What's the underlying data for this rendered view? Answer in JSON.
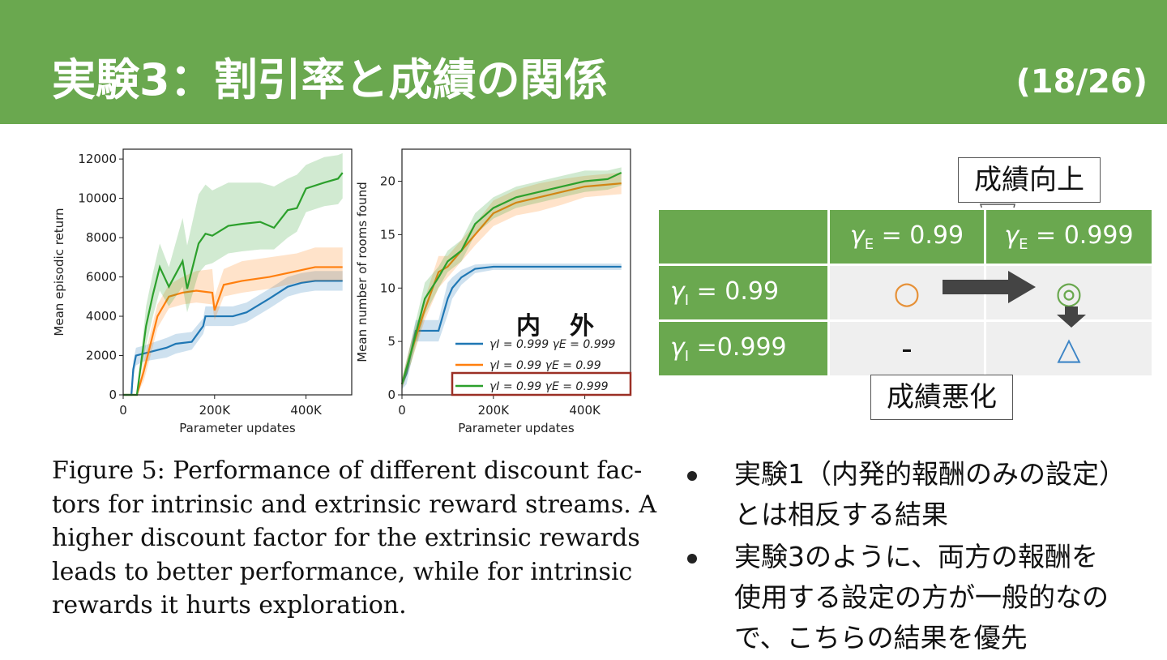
{
  "slide": {
    "title": "実験3：割引率と成績の関係",
    "page": "(18/26)"
  },
  "chart_data": [
    {
      "type": "line",
      "xlabel": "Parameter updates",
      "ylabel": "Mean episodic return",
      "xlim": [
        0,
        500000
      ],
      "ylim": [
        0,
        12500
      ],
      "xticks": [
        0,
        200000,
        400000
      ],
      "xtick_labels": [
        "0",
        "200K",
        "400K"
      ],
      "yticks": [
        0,
        2000,
        4000,
        6000,
        8000,
        10000,
        12000
      ],
      "ytick_labels": [
        "0",
        "2000",
        "4000",
        "6000",
        "8000",
        "10000",
        "12000"
      ],
      "series": [
        {
          "color": "#1f77b4",
          "x": [
            0,
            18000,
            22000,
            28000,
            45000,
            95000,
            115000,
            150000,
            175000,
            180000,
            240000,
            270000,
            320000,
            360000,
            390000,
            420000,
            480000
          ],
          "y": [
            0,
            0,
            1300,
            2000,
            2100,
            2400,
            2600,
            2700,
            3500,
            4000,
            4000,
            4200,
            4900,
            5500,
            5700,
            5800,
            5800
          ],
          "lo": [
            0,
            0,
            900,
            1500,
            1700,
            1900,
            2100,
            2300,
            3100,
            3500,
            3500,
            3700,
            4400,
            5000,
            5200,
            5300,
            5300
          ],
          "hi": [
            0,
            0,
            1700,
            2400,
            2500,
            2900,
            3100,
            3200,
            3900,
            4500,
            4500,
            4700,
            5400,
            6000,
            6200,
            6300,
            6300
          ]
        },
        {
          "color": "#ff7f0e",
          "x": [
            0,
            30000,
            45000,
            60000,
            75000,
            100000,
            130000,
            160000,
            195000,
            200000,
            220000,
            260000,
            320000,
            380000,
            420000,
            480000
          ],
          "y": [
            0,
            0,
            1200,
            2600,
            4000,
            5000,
            5200,
            5300,
            5200,
            4300,
            5600,
            5800,
            6000,
            6300,
            6500,
            6500
          ],
          "lo": [
            0,
            0,
            700,
            2000,
            3400,
            4400,
            4600,
            4700,
            4600,
            3800,
            5000,
            5200,
            5400,
            5700,
            5800,
            5800
          ],
          "hi": [
            0,
            0,
            1700,
            3200,
            4600,
            5600,
            6000,
            6300,
            6400,
            5000,
            6400,
            6800,
            7000,
            7200,
            7500,
            7500
          ]
        },
        {
          "color": "#2ca02c",
          "x": [
            0,
            30000,
            50000,
            65000,
            80000,
            100000,
            130000,
            140000,
            165000,
            180000,
            195000,
            230000,
            260000,
            300000,
            330000,
            360000,
            380000,
            400000,
            440000,
            470000,
            480000
          ],
          "y": [
            0,
            0,
            3500,
            5100,
            6500,
            5500,
            6800,
            5400,
            7700,
            8200,
            8100,
            8600,
            8700,
            8800,
            8500,
            9400,
            9500,
            10500,
            10800,
            11000,
            11300
          ],
          "lo": [
            0,
            0,
            2500,
            4000,
            5300,
            4500,
            5500,
            4200,
            6200,
            6600,
            6700,
            7200,
            7300,
            7400,
            7400,
            8000,
            8300,
            9300,
            9600,
            9700,
            10000
          ],
          "hi": [
            0,
            0,
            4500,
            6200,
            7700,
            6500,
            9000,
            7600,
            10200,
            10700,
            10400,
            10800,
            10800,
            10800,
            10600,
            11000,
            11200,
            11700,
            12100,
            12200,
            12300
          ]
        }
      ]
    },
    {
      "type": "line",
      "xlabel": "Parameter updates",
      "ylabel": "Mean number of rooms found",
      "xlim": [
        0,
        500000
      ],
      "ylim": [
        0,
        23
      ],
      "xticks": [
        0,
        200000,
        400000
      ],
      "xtick_labels": [
        "0",
        "200K",
        "400K"
      ],
      "yticks": [
        0,
        5,
        10,
        15,
        20
      ],
      "ytick_labels": [
        "0",
        "5",
        "10",
        "15",
        "20"
      ],
      "legend": {
        "placement": "lower-right",
        "header": [
          "内",
          "外"
        ]
      },
      "series": [
        {
          "name": "γI = 0.999 γE = 0.999",
          "color": "#1f77b4",
          "x": [
            0,
            10000,
            20000,
            30000,
            80000,
            100000,
            110000,
            130000,
            160000,
            200000,
            300000,
            480000
          ],
          "y": [
            1,
            2,
            4,
            6,
            6,
            9,
            10,
            11,
            11.8,
            12,
            12,
            12
          ],
          "lo": [
            0.5,
            1,
            3,
            5,
            5,
            7.5,
            9,
            10.3,
            11.4,
            11.7,
            11.7,
            11.7
          ],
          "hi": [
            1.5,
            3,
            5,
            7,
            7,
            10.5,
            11,
            11.7,
            12.2,
            12.3,
            12.3,
            12.3
          ]
        },
        {
          "name": "γI = 0.99 γE = 0.99",
          "color": "#ff7f0e",
          "x": [
            0,
            20000,
            50000,
            80000,
            100000,
            130000,
            160000,
            200000,
            250000,
            300000,
            350000,
            400000,
            480000
          ],
          "y": [
            1,
            4,
            8,
            11.5,
            12,
            13.5,
            15,
            17,
            18,
            18.5,
            19,
            19.5,
            19.8
          ],
          "lo": [
            0.5,
            3,
            7,
            10,
            11,
            12.5,
            14,
            15.8,
            16.8,
            17.2,
            17.8,
            18.5,
            18.8
          ],
          "hi": [
            1.5,
            5,
            9,
            13,
            13,
            14.5,
            16,
            18.2,
            19.2,
            19.8,
            20.2,
            20.5,
            20.8
          ]
        },
        {
          "name": "γI = 0.99 γE = 0.999",
          "color": "#2ca02c",
          "x": [
            0,
            20000,
            50000,
            80000,
            100000,
            130000,
            160000,
            200000,
            250000,
            300000,
            350000,
            400000,
            450000,
            480000
          ],
          "y": [
            1,
            4,
            9,
            11,
            12.5,
            13.5,
            16,
            17.5,
            18.5,
            19,
            19.5,
            20,
            20.2,
            20.8
          ],
          "lo": [
            0.5,
            3,
            7.5,
            10,
            11.5,
            12.5,
            15,
            16.5,
            17.5,
            18,
            18.5,
            19,
            19.2,
            19.6
          ],
          "hi": [
            1.5,
            5,
            10.5,
            12,
            13.5,
            14.5,
            17,
            18.5,
            19.5,
            20,
            20.5,
            21,
            21,
            21.3
          ]
        }
      ]
    }
  ],
  "caption": {
    "lines": [
      "Figure 5: Performance of different discount fac-",
      "tors for intrinsic and extrinsic reward streams. A",
      "higher discount factor for the extrinsic rewards",
      "leads to better performance, while for intrinsic",
      "rewards it hurts exploration."
    ]
  },
  "callouts": {
    "improve": "成績向上",
    "worse": "成績悪化"
  },
  "table": {
    "col_headers": [
      {
        "sym": "γ",
        "sub": "E",
        "val": " = 0.99"
      },
      {
        "sym": "γ",
        "sub": "E",
        "val": " = 0.999"
      }
    ],
    "rows": [
      {
        "sym": "γ",
        "sub": "I",
        "val": " = 0.99",
        "cells": [
          "○",
          "◎"
        ]
      },
      {
        "sym": "γ",
        "sub": "I",
        "val": " =0.999",
        "cells": [
          "-",
          "△"
        ]
      }
    ],
    "colors": {
      "circle": "#e69138",
      "double_circle": "#6aa84f",
      "triangle": "#3d85c6",
      "arrow": "#444444"
    }
  },
  "bullets": [
    [
      "実験1（内発的報酬のみの設定）",
      "とは相反する結果"
    ],
    [
      "実験3のように、両方の報酬を",
      "使用する設定の方が一般的なの",
      "で、こちらの結果を優先"
    ]
  ]
}
